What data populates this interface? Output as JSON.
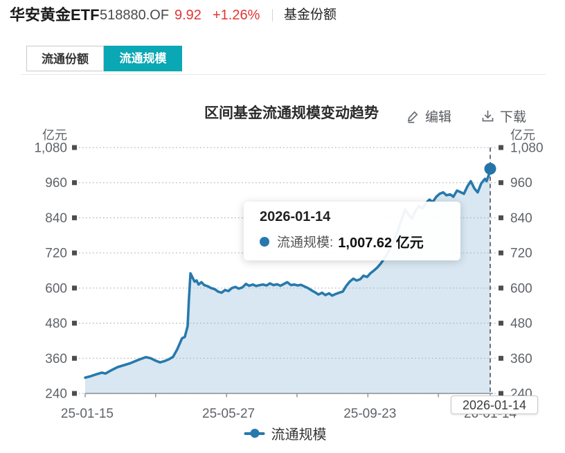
{
  "header": {
    "fund_name": "华安黄金ETF",
    "fund_code": "518880.OF",
    "price": "9.92",
    "change_percent": "+1.26%",
    "nav_label": "基金份额",
    "quote_color": "#e13434"
  },
  "tabs": [
    {
      "label": "流通份额",
      "active": false
    },
    {
      "label": "流通规模",
      "active": true
    }
  ],
  "accent_color": "#0aa7b4",
  "toolbar": {
    "edit_label": "编辑",
    "download_label": "下载"
  },
  "chart_data": {
    "type": "area",
    "title": "区间基金流通规模变动趋势",
    "unit_left": "亿元",
    "unit_right": "亿元",
    "ylim": [
      240,
      1080
    ],
    "y_ticks": [
      240,
      360,
      480,
      600,
      720,
      840,
      960,
      1080
    ],
    "grid": "dotted-horizontal, value squares at both ends, labels on both sides",
    "x_labels": [
      {
        "label": "25-01-15",
        "f": 0.005
      },
      {
        "label": "25-05-27",
        "f": 0.354
      },
      {
        "label": "25-09-23",
        "f": 0.703
      },
      {
        "label": "26-01-14",
        "f": 1.0
      }
    ],
    "x_minor_ticks": [
      0,
      0.174,
      0.349,
      0.523,
      0.698,
      0.872,
      1.0
    ],
    "legend": {
      "name": "流通规模",
      "position": "bottom-center"
    },
    "series": [
      {
        "name": "流通规模",
        "line_color": "#2779ad",
        "fill_color": "#d8e7f1",
        "points": [
          [
            0,
            294
          ],
          [
            0.014,
            299
          ],
          [
            0.029,
            306
          ],
          [
            0.041,
            311
          ],
          [
            0.05,
            308
          ],
          [
            0.063,
            318
          ],
          [
            0.08,
            330
          ],
          [
            0.097,
            337
          ],
          [
            0.111,
            343
          ],
          [
            0.125,
            351
          ],
          [
            0.138,
            358
          ],
          [
            0.15,
            364
          ],
          [
            0.162,
            360
          ],
          [
            0.174,
            352
          ],
          [
            0.185,
            346
          ],
          [
            0.197,
            351
          ],
          [
            0.207,
            357
          ],
          [
            0.217,
            365
          ],
          [
            0.227,
            390
          ],
          [
            0.234,
            412
          ],
          [
            0.239,
            428
          ],
          [
            0.246,
            433
          ],
          [
            0.253,
            470
          ],
          [
            0.256,
            560
          ],
          [
            0.26,
            650
          ],
          [
            0.265,
            636
          ],
          [
            0.27,
            622
          ],
          [
            0.275,
            626
          ],
          [
            0.28,
            612
          ],
          [
            0.287,
            620
          ],
          [
            0.294,
            610
          ],
          [
            0.303,
            606
          ],
          [
            0.311,
            600
          ],
          [
            0.32,
            596
          ],
          [
            0.328,
            588
          ],
          [
            0.337,
            584
          ],
          [
            0.345,
            593
          ],
          [
            0.354,
            590
          ],
          [
            0.362,
            600
          ],
          [
            0.371,
            604
          ],
          [
            0.379,
            598
          ],
          [
            0.388,
            602
          ],
          [
            0.397,
            614
          ],
          [
            0.405,
            608
          ],
          [
            0.414,
            612
          ],
          [
            0.422,
            607
          ],
          [
            0.431,
            610
          ],
          [
            0.439,
            612
          ],
          [
            0.448,
            609
          ],
          [
            0.456,
            616
          ],
          [
            0.465,
            610
          ],
          [
            0.474,
            613
          ],
          [
            0.482,
            608
          ],
          [
            0.491,
            614
          ],
          [
            0.499,
            620
          ],
          [
            0.508,
            610
          ],
          [
            0.516,
            612
          ],
          [
            0.525,
            609
          ],
          [
            0.533,
            611
          ],
          [
            0.542,
            605
          ],
          [
            0.55,
            600
          ],
          [
            0.559,
            592
          ],
          [
            0.568,
            585
          ],
          [
            0.576,
            578
          ],
          [
            0.585,
            584
          ],
          [
            0.593,
            576
          ],
          [
            0.602,
            582
          ],
          [
            0.61,
            574
          ],
          [
            0.619,
            580
          ],
          [
            0.627,
            584
          ],
          [
            0.636,
            588
          ],
          [
            0.644,
            606
          ],
          [
            0.653,
            622
          ],
          [
            0.662,
            632
          ],
          [
            0.67,
            626
          ],
          [
            0.679,
            630
          ],
          [
            0.687,
            642
          ],
          [
            0.696,
            638
          ],
          [
            0.704,
            650
          ],
          [
            0.713,
            660
          ],
          [
            0.721,
            670
          ],
          [
            0.73,
            684
          ],
          [
            0.738,
            700
          ],
          [
            0.747,
            720
          ],
          [
            0.756,
            745
          ],
          [
            0.764,
            768
          ],
          [
            0.773,
            800
          ],
          [
            0.781,
            835
          ],
          [
            0.79,
            868
          ],
          [
            0.798,
            852
          ],
          [
            0.807,
            838
          ],
          [
            0.815,
            862
          ],
          [
            0.824,
            880
          ],
          [
            0.832,
            872
          ],
          [
            0.841,
            890
          ],
          [
            0.85,
            902
          ],
          [
            0.858,
            894
          ],
          [
            0.867,
            912
          ],
          [
            0.875,
            922
          ],
          [
            0.884,
            927
          ],
          [
            0.892,
            917
          ],
          [
            0.901,
            920
          ],
          [
            0.909,
            912
          ],
          [
            0.918,
            933
          ],
          [
            0.926,
            928
          ],
          [
            0.935,
            922
          ],
          [
            0.944,
            948
          ],
          [
            0.952,
            965
          ],
          [
            0.961,
            940
          ],
          [
            0.969,
            927
          ],
          [
            0.978,
            958
          ],
          [
            0.987,
            973
          ],
          [
            0.991,
            965
          ],
          [
            0.997,
            988
          ],
          [
            1,
            1007.62
          ]
        ]
      }
    ],
    "highlight_point": {
      "f": 1.0,
      "value": 1007.62,
      "dot_color": "#2474a8"
    },
    "axis_pointer": {
      "date_label": "2026-01-14",
      "style": "dashed-vertical"
    },
    "text_color": "#5f6368"
  },
  "tooltip": {
    "date": "2026-01-14",
    "series_label": "流通规模:",
    "value": "1,007.62",
    "unit": "亿元",
    "dot_color": "#2779ad"
  }
}
